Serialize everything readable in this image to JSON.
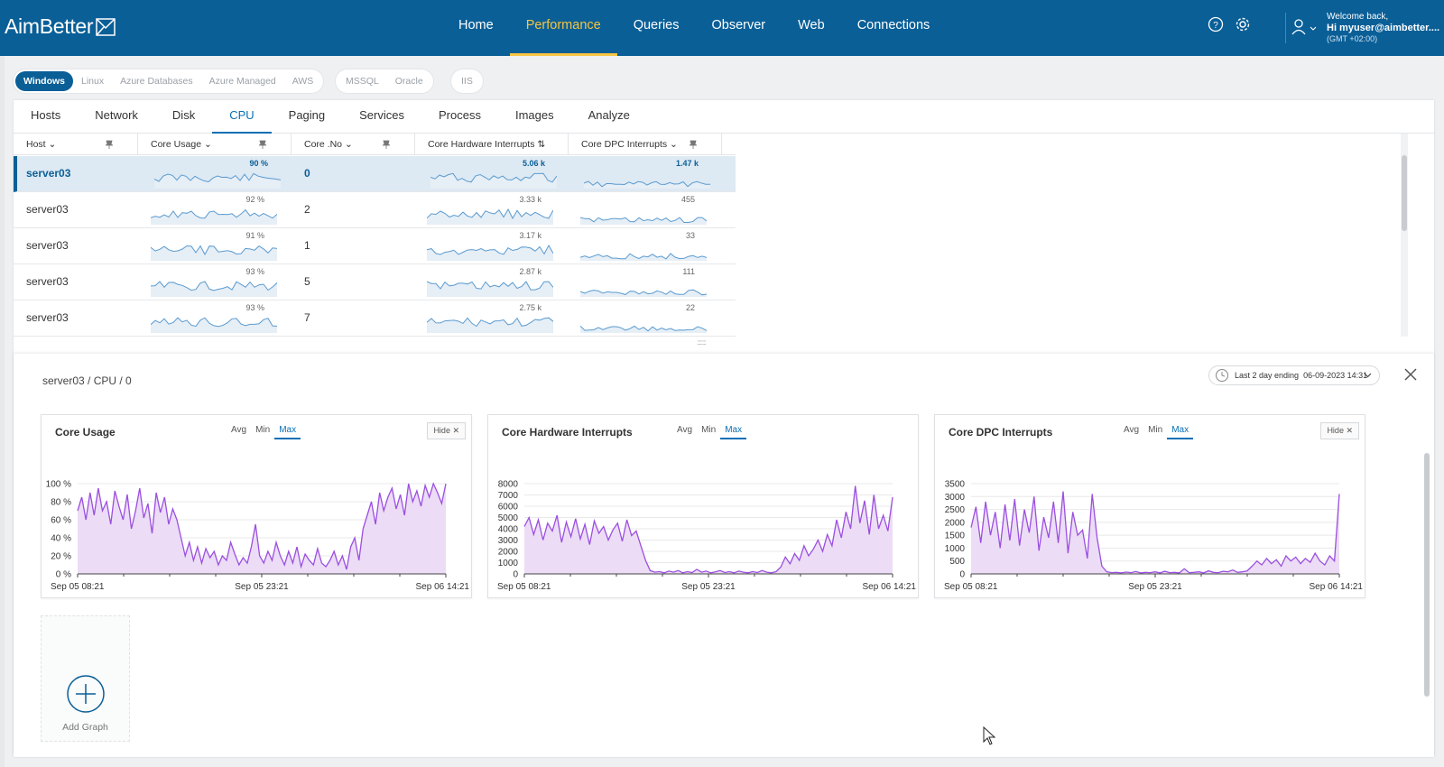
{
  "header": {
    "logo": "AimBetter",
    "nav": [
      "Home",
      "Performance",
      "Queries",
      "Observer",
      "Web",
      "Connections"
    ],
    "active_nav": 1,
    "welcome": "Welcome back,",
    "user": "Hi myuser@aimbetter....",
    "timezone": "(GMT +02:00)"
  },
  "platforms": {
    "group1": [
      "Windows",
      "Linux",
      "Azure Databases",
      "Azure Managed",
      "AWS"
    ],
    "group2": [
      "MSSQL",
      "Oracle"
    ],
    "group3": [
      "IIS"
    ]
  },
  "tabs": [
    "Hosts",
    "Network",
    "Disk",
    "CPU",
    "Paging",
    "Services",
    "Process",
    "Images",
    "Analyze"
  ],
  "columns": {
    "host": "Host",
    "core_usage": "Core Usage",
    "core_no": "Core .No",
    "hw_interrupts": "Core Hardware Interrupts",
    "dpc_interrupts": "Core DPC Interrupts"
  },
  "rows": [
    {
      "host": "server03",
      "usage": "90 %",
      "core": "0",
      "hw": "5.06 k",
      "dpc": "1.47 k"
    },
    {
      "host": "server03",
      "usage": "92 %",
      "core": "2",
      "hw": "3.33 k",
      "dpc": "455"
    },
    {
      "host": "server03",
      "usage": "91 %",
      "core": "1",
      "hw": "3.17 k",
      "dpc": "33"
    },
    {
      "host": "server03",
      "usage": "93 %",
      "core": "5",
      "hw": "2.87 k",
      "dpc": "111"
    },
    {
      "host": "server03",
      "usage": "93 %",
      "core": "7",
      "hw": "2.75 k",
      "dpc": "22"
    }
  ],
  "detail": {
    "breadcrumb": "server03 / CPU / 0",
    "range_label": "Last 2 day ending",
    "range_date": "06-09-2023 14:31",
    "graph_tabs": [
      "Avg",
      "Min",
      "Max"
    ],
    "hide_label": "Hide",
    "add_graph": "Add Graph"
  },
  "chart_data": [
    {
      "type": "area",
      "title": "Core Usage",
      "y_unit": "%",
      "ylim": [
        0,
        100
      ],
      "yticks": [
        "100 %",
        "80 %",
        "60 %",
        "40 %",
        "20 %",
        "0 %"
      ],
      "xticks": [
        "Sep 05 08:21",
        "Sep 05 23:21",
        "Sep 06 14:21"
      ],
      "values": [
        70,
        85,
        60,
        90,
        65,
        95,
        70,
        80,
        55,
        92,
        75,
        60,
        88,
        50,
        70,
        95,
        62,
        78,
        45,
        90,
        68,
        85,
        55,
        72,
        60,
        40,
        20,
        35,
        15,
        30,
        12,
        28,
        18,
        25,
        10,
        20,
        15,
        35,
        22,
        10,
        18,
        12,
        30,
        55,
        20,
        12,
        25,
        15,
        35,
        20,
        10,
        25,
        12,
        30,
        8,
        22,
        15,
        10,
        28,
        12,
        8,
        15,
        25,
        10,
        20,
        5,
        30,
        40,
        15,
        50,
        65,
        80,
        55,
        90,
        70,
        85,
        95,
        72,
        88,
        65,
        100,
        80,
        92,
        75,
        98,
        85,
        100,
        90,
        78,
        100
      ]
    },
    {
      "type": "area",
      "title": "Core Hardware Interrupts",
      "ylim": [
        0,
        8000
      ],
      "yticks": [
        "8000",
        "7000",
        "6000",
        "5000",
        "4000",
        "3000",
        "2000",
        "1000",
        "0"
      ],
      "xticks": [
        "Sep 05 08:21",
        "Sep 05 23:21",
        "Sep 06 14:21"
      ],
      "values": [
        4200,
        5000,
        3500,
        4800,
        3000,
        4500,
        3800,
        5200,
        2800,
        4600,
        3300,
        4900,
        3100,
        4400,
        2600,
        4700,
        3600,
        4200,
        3000,
        3900,
        4500,
        2900,
        4800,
        3400,
        3800,
        2500,
        1200,
        300,
        150,
        200,
        100,
        250,
        150,
        300,
        100,
        200,
        120,
        400,
        150,
        250,
        100,
        180,
        300,
        120,
        200,
        100,
        250,
        150,
        100,
        200,
        120,
        300,
        150,
        100,
        200,
        600,
        1500,
        900,
        1800,
        1200,
        2500,
        1600,
        2200,
        3000,
        2000,
        3500,
        2500,
        4800,
        3200,
        5500,
        4000,
        7800,
        4500,
        6500,
        3500,
        7000,
        4000,
        5200,
        3800,
        6800
      ]
    },
    {
      "type": "area",
      "title": "Core DPC Interrupts",
      "ylim": [
        0,
        3500
      ],
      "yticks": [
        "3500",
        "3000",
        "2500",
        "2000",
        "1500",
        "1000",
        "500",
        "0"
      ],
      "xticks": [
        "Sep 05 08:21",
        "Sep 05 23:21",
        "Sep 06 14:21"
      ],
      "values": [
        1800,
        2600,
        1200,
        2800,
        1500,
        2400,
        1000,
        2700,
        1300,
        2900,
        1100,
        2500,
        1600,
        3000,
        900,
        2200,
        1400,
        2800,
        1200,
        3200,
        800,
        2400,
        1500,
        1700,
        600,
        3100,
        1400,
        300,
        80,
        50,
        60,
        40,
        70,
        50,
        90,
        40,
        60,
        50,
        80,
        40,
        100,
        50,
        60,
        40,
        200,
        50,
        60,
        80,
        40,
        120,
        60,
        50,
        100,
        80,
        150,
        60,
        80,
        120,
        300,
        500,
        350,
        600,
        400,
        550,
        300,
        700,
        500,
        650,
        400,
        600,
        450,
        800,
        500,
        350,
        700,
        500,
        3100
      ]
    }
  ]
}
